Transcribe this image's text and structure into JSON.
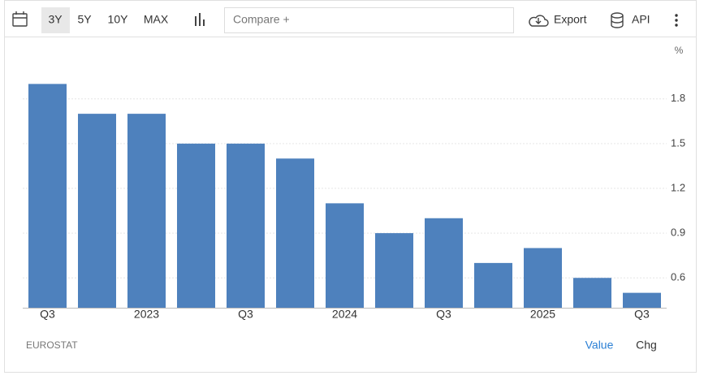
{
  "toolbar": {
    "ranges": [
      "3Y",
      "5Y",
      "10Y",
      "MAX"
    ],
    "compare": "Compare +",
    "export": "Export",
    "api": "API"
  },
  "chart_data": {
    "type": "bar",
    "categories": [
      "Q3",
      null,
      "2023",
      null,
      "Q3",
      null,
      "2024",
      null,
      "Q3",
      null,
      "2025",
      null,
      "Q3"
    ],
    "values": [
      1.9,
      1.7,
      1.7,
      1.5,
      1.5,
      1.4,
      1.1,
      0.9,
      1.0,
      0.7,
      0.8,
      0.6,
      0.5
    ],
    "color": "#4e81bd",
    "ylim": [
      0.4,
      2.0
    ],
    "yticks": [
      0.6,
      0.9,
      1.2,
      1.5,
      1.8
    ],
    "grid": true,
    "y_unit": "%",
    "source": "EUROSTAT",
    "modes": [
      "Value",
      "Chg"
    ]
  }
}
